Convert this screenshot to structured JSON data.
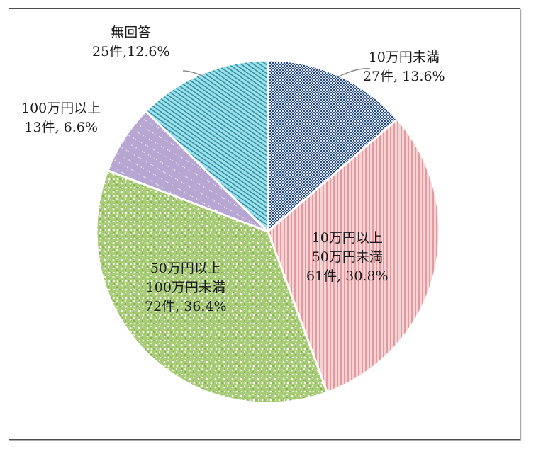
{
  "chart_data": {
    "type": "pie",
    "title": "",
    "start_angle_deg": 90,
    "direction": "clockwise",
    "categories": [
      "10万円未満",
      "10万円以上50万円未満",
      "50万円以上100万円未満",
      "100万円以上",
      "無回答"
    ],
    "counts": [
      27,
      61,
      72,
      13,
      25
    ],
    "values": [
      13.6,
      30.8,
      36.4,
      6.6,
      12.6
    ],
    "unit": "%",
    "colors": [
      "#2f4f86",
      "#e8a3a6",
      "#9dc46b",
      "#b4a4cf",
      "#7fd3e0"
    ],
    "patterns": [
      "checker-dense",
      "vertical-stripes",
      "dotted-grid",
      "diagonal-dashes",
      "diagonal-stripes"
    ],
    "legend": "none (data labels)"
  },
  "labels": [
    {
      "line1": "10万円未満",
      "line2": "27件, 13.6%"
    },
    {
      "line1": "10万円以上",
      "line2": "50万円未満",
      "line3": "61件, 30.8%"
    },
    {
      "line1": "50万円以上",
      "line2": "100万円未満",
      "line3": "72件, 36.4%"
    },
    {
      "line1": "100万円以上",
      "line2": "13件, 6.6%"
    },
    {
      "line1": "無回答",
      "line2": "25件,12.6%"
    }
  ]
}
